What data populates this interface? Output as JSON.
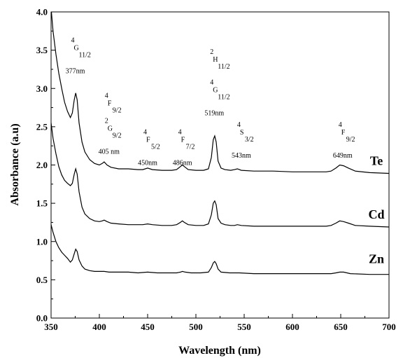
{
  "chart_data": {
    "type": "line",
    "xlabel": "Wavelength (nm)",
    "ylabel": "Absorbance (a.u)",
    "xlim": [
      350,
      700
    ],
    "ylim": [
      0.0,
      4.0
    ],
    "x_ticks": [
      350,
      400,
      450,
      500,
      550,
      600,
      650,
      700
    ],
    "x_tick_labels": [
      "350",
      "400",
      "450",
      "500",
      "550",
      "600",
      "650",
      "700"
    ],
    "y_ticks": [
      0.0,
      0.5,
      1.0,
      1.5,
      2.0,
      2.5,
      3.0,
      3.5,
      4.0
    ],
    "y_tick_labels": [
      "0.0",
      "0.5",
      "1.0",
      "1.5",
      "2.0",
      "2.5",
      "3.0",
      "3.5",
      "4.0"
    ],
    "grid": false,
    "series": [
      {
        "name": "Te",
        "color": "#000000",
        "points": [
          [
            350,
            4.05
          ],
          [
            352,
            3.75
          ],
          [
            355,
            3.45
          ],
          [
            358,
            3.2
          ],
          [
            361,
            3.0
          ],
          [
            364,
            2.82
          ],
          [
            367,
            2.7
          ],
          [
            370,
            2.62
          ],
          [
            372,
            2.68
          ],
          [
            374,
            2.85
          ],
          [
            375.5,
            2.94
          ],
          [
            377,
            2.85
          ],
          [
            379,
            2.55
          ],
          [
            382,
            2.3
          ],
          [
            385,
            2.17
          ],
          [
            390,
            2.07
          ],
          [
            395,
            2.02
          ],
          [
            400,
            2.0
          ],
          [
            403,
            2.02
          ],
          [
            405,
            2.04
          ],
          [
            408,
            2.0
          ],
          [
            412,
            1.97
          ],
          [
            420,
            1.95
          ],
          [
            430,
            1.95
          ],
          [
            440,
            1.94
          ],
          [
            445,
            1.94
          ],
          [
            450,
            1.96
          ],
          [
            455,
            1.94
          ],
          [
            465,
            1.93
          ],
          [
            475,
            1.93
          ],
          [
            480,
            1.94
          ],
          [
            484,
            1.98
          ],
          [
            486,
            2.0
          ],
          [
            488,
            1.98
          ],
          [
            492,
            1.94
          ],
          [
            500,
            1.93
          ],
          [
            508,
            1.93
          ],
          [
            513,
            1.95
          ],
          [
            516,
            2.1
          ],
          [
            518,
            2.33
          ],
          [
            519.5,
            2.38
          ],
          [
            521,
            2.3
          ],
          [
            523,
            2.05
          ],
          [
            526,
            1.96
          ],
          [
            530,
            1.94
          ],
          [
            536,
            1.93
          ],
          [
            540,
            1.94
          ],
          [
            543,
            1.95
          ],
          [
            547,
            1.93
          ],
          [
            560,
            1.92
          ],
          [
            580,
            1.92
          ],
          [
            600,
            1.91
          ],
          [
            620,
            1.91
          ],
          [
            635,
            1.91
          ],
          [
            640,
            1.92
          ],
          [
            645,
            1.96
          ],
          [
            649,
            2.0
          ],
          [
            653,
            1.99
          ],
          [
            658,
            1.96
          ],
          [
            665,
            1.92
          ],
          [
            680,
            1.9
          ],
          [
            700,
            1.89
          ]
        ]
      },
      {
        "name": "Cd",
        "color": "#000000",
        "points": [
          [
            350,
            2.55
          ],
          [
            352,
            2.35
          ],
          [
            355,
            2.15
          ],
          [
            358,
            1.98
          ],
          [
            361,
            1.87
          ],
          [
            364,
            1.8
          ],
          [
            367,
            1.76
          ],
          [
            370,
            1.73
          ],
          [
            372,
            1.76
          ],
          [
            374,
            1.88
          ],
          [
            375.5,
            1.95
          ],
          [
            377,
            1.88
          ],
          [
            379,
            1.65
          ],
          [
            382,
            1.45
          ],
          [
            385,
            1.36
          ],
          [
            390,
            1.3
          ],
          [
            395,
            1.27
          ],
          [
            400,
            1.26
          ],
          [
            403,
            1.27
          ],
          [
            405,
            1.28
          ],
          [
            408,
            1.26
          ],
          [
            412,
            1.24
          ],
          [
            420,
            1.23
          ],
          [
            430,
            1.22
          ],
          [
            440,
            1.22
          ],
          [
            445,
            1.22
          ],
          [
            450,
            1.23
          ],
          [
            455,
            1.22
          ],
          [
            465,
            1.21
          ],
          [
            475,
            1.21
          ],
          [
            480,
            1.22
          ],
          [
            484,
            1.25
          ],
          [
            486,
            1.27
          ],
          [
            488,
            1.25
          ],
          [
            492,
            1.22
          ],
          [
            500,
            1.21
          ],
          [
            508,
            1.21
          ],
          [
            513,
            1.23
          ],
          [
            516,
            1.35
          ],
          [
            518,
            1.5
          ],
          [
            519.5,
            1.53
          ],
          [
            521,
            1.48
          ],
          [
            523,
            1.3
          ],
          [
            526,
            1.24
          ],
          [
            530,
            1.22
          ],
          [
            536,
            1.21
          ],
          [
            540,
            1.21
          ],
          [
            543,
            1.22
          ],
          [
            547,
            1.21
          ],
          [
            560,
            1.2
          ],
          [
            580,
            1.2
          ],
          [
            600,
            1.2
          ],
          [
            620,
            1.2
          ],
          [
            635,
            1.2
          ],
          [
            640,
            1.21
          ],
          [
            645,
            1.24
          ],
          [
            649,
            1.27
          ],
          [
            653,
            1.26
          ],
          [
            658,
            1.24
          ],
          [
            665,
            1.21
          ],
          [
            680,
            1.2
          ],
          [
            700,
            1.19
          ]
        ]
      },
      {
        "name": "Zn",
        "color": "#000000",
        "points": [
          [
            350,
            1.22
          ],
          [
            352,
            1.12
          ],
          [
            355,
            1.0
          ],
          [
            358,
            0.92
          ],
          [
            361,
            0.86
          ],
          [
            364,
            0.82
          ],
          [
            367,
            0.78
          ],
          [
            370,
            0.73
          ],
          [
            372,
            0.76
          ],
          [
            374,
            0.84
          ],
          [
            375.5,
            0.9
          ],
          [
            377,
            0.87
          ],
          [
            379,
            0.76
          ],
          [
            382,
            0.68
          ],
          [
            385,
            0.64
          ],
          [
            390,
            0.62
          ],
          [
            395,
            0.61
          ],
          [
            400,
            0.61
          ],
          [
            405,
            0.61
          ],
          [
            410,
            0.6
          ],
          [
            420,
            0.6
          ],
          [
            430,
            0.6
          ],
          [
            440,
            0.59
          ],
          [
            450,
            0.6
          ],
          [
            460,
            0.59
          ],
          [
            470,
            0.59
          ],
          [
            480,
            0.59
          ],
          [
            484,
            0.6
          ],
          [
            486,
            0.61
          ],
          [
            489,
            0.6
          ],
          [
            495,
            0.59
          ],
          [
            505,
            0.59
          ],
          [
            513,
            0.6
          ],
          [
            516,
            0.66
          ],
          [
            518,
            0.72
          ],
          [
            519.5,
            0.74
          ],
          [
            521,
            0.71
          ],
          [
            523,
            0.64
          ],
          [
            526,
            0.6
          ],
          [
            535,
            0.59
          ],
          [
            545,
            0.59
          ],
          [
            560,
            0.58
          ],
          [
            580,
            0.58
          ],
          [
            600,
            0.58
          ],
          [
            620,
            0.58
          ],
          [
            640,
            0.58
          ],
          [
            645,
            0.59
          ],
          [
            649,
            0.6
          ],
          [
            653,
            0.6
          ],
          [
            660,
            0.58
          ],
          [
            680,
            0.57
          ],
          [
            700,
            0.57
          ]
        ]
      }
    ],
    "series_labels": [
      {
        "text": "Te",
        "x": 687,
        "y": 2.0
      },
      {
        "text": "Cd",
        "x": 687,
        "y": 1.3
      },
      {
        "text": "Zn",
        "x": 687,
        "y": 0.72
      }
    ],
    "annotations": [
      {
        "lines": [
          "4",
          "G",
          "11/2"
        ],
        "nm": "377nm",
        "x": 375,
        "y": 3.5
      },
      {
        "lines": [
          "4",
          "F",
          "9/2"
        ],
        "x": 410,
        "y": 2.78
      },
      {
        "lines": [
          "2",
          "G",
          "9/2"
        ],
        "nm": "405 nm",
        "x": 410,
        "y": 2.45
      },
      {
        "lines": [
          "4",
          "F",
          "5/2"
        ],
        "nm": "450nm",
        "x": 450,
        "y": 2.3
      },
      {
        "lines": [
          "4",
          "F",
          "7/2"
        ],
        "nm": "486nm",
        "x": 486,
        "y": 2.3
      },
      {
        "lines": [
          "2",
          "H",
          "11/2"
        ],
        "x": 519,
        "y": 3.35
      },
      {
        "lines": [
          "4",
          "G",
          "11/2"
        ],
        "nm": "519nm",
        "x": 519,
        "y": 2.95
      },
      {
        "lines": [
          "4",
          "S",
          "3/2"
        ],
        "nm": "543nm",
        "x": 547,
        "y": 2.4
      },
      {
        "lines": [
          "4",
          "F",
          "9/2"
        ],
        "nm": "649nm",
        "x": 652,
        "y": 2.4
      }
    ]
  }
}
